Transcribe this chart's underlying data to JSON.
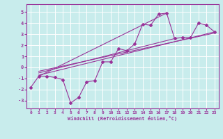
{
  "xlabel": "Windchill (Refroidissement éolien,°C)",
  "bg_color": "#c8ecec",
  "grid_color": "#ffffff",
  "line_color": "#993399",
  "xlim": [
    -0.5,
    23.5
  ],
  "ylim": [
    -3.7,
    5.7
  ],
  "xticks": [
    0,
    1,
    2,
    3,
    4,
    5,
    6,
    7,
    8,
    9,
    10,
    11,
    12,
    13,
    14,
    15,
    16,
    17,
    18,
    19,
    20,
    21,
    22,
    23
  ],
  "yticks": [
    -3,
    -2,
    -1,
    0,
    1,
    2,
    3,
    4,
    5
  ],
  "scatter_x": [
    0,
    1,
    2,
    3,
    4,
    5,
    6,
    7,
    8,
    9,
    10,
    11,
    12,
    13,
    14,
    15,
    16,
    17,
    18,
    19,
    20,
    21,
    22,
    23
  ],
  "scatter_y": [
    -1.8,
    -0.8,
    -0.8,
    -0.9,
    -1.1,
    -3.2,
    -2.7,
    -1.3,
    -1.2,
    0.5,
    0.5,
    1.7,
    1.5,
    2.1,
    3.9,
    3.8,
    4.8,
    4.9,
    2.6,
    2.7,
    2.7,
    4.0,
    3.8,
    3.2
  ],
  "line1_x": [
    1,
    17
  ],
  "line1_y": [
    -0.8,
    4.9
  ],
  "line2_x": [
    1,
    23
  ],
  "line2_y": [
    -0.7,
    3.2
  ],
  "line3_x": [
    1,
    18
  ],
  "line3_y": [
    -0.5,
    2.6
  ],
  "line4_x": [
    1,
    23
  ],
  "line4_y": [
    -0.35,
    3.1
  ]
}
